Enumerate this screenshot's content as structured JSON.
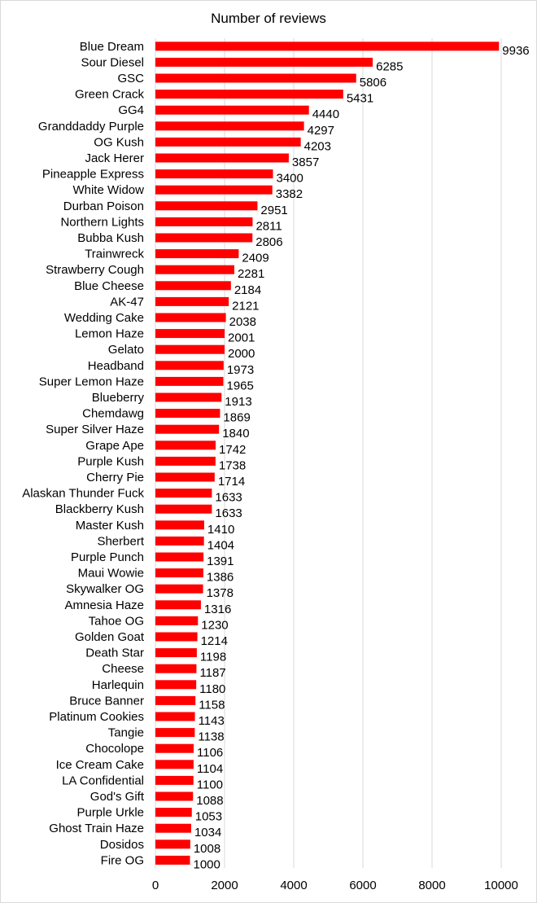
{
  "chart_data": {
    "type": "bar",
    "orientation": "horizontal",
    "title": "Number of reviews",
    "xlim": [
      0,
      10000
    ],
    "xticks": [
      0,
      2000,
      4000,
      6000,
      8000,
      10000
    ],
    "grid": true,
    "bar_color": "#ff0000",
    "categories": [
      "Blue Dream",
      "Sour Diesel",
      "GSC",
      "Green Crack",
      "GG4",
      "Granddaddy Purple",
      "OG Kush",
      "Jack Herer",
      "Pineapple Express",
      "White Widow",
      "Durban Poison",
      "Northern Lights",
      "Bubba Kush",
      "Trainwreck",
      "Strawberry Cough",
      "Blue Cheese",
      "AK-47",
      "Wedding Cake",
      "Lemon Haze",
      "Gelato",
      "Headband",
      "Super Lemon Haze",
      "Blueberry",
      "Chemdawg",
      "Super Silver Haze",
      "Grape Ape",
      "Purple Kush",
      "Cherry Pie",
      "Alaskan Thunder Fuck",
      "Blackberry Kush",
      "Master Kush",
      "Sherbert",
      "Purple Punch",
      "Maui Wowie",
      "Skywalker OG",
      "Amnesia Haze",
      "Tahoe OG",
      "Golden Goat",
      "Death Star",
      "Cheese",
      "Harlequin",
      "Bruce Banner",
      "Platinum Cookies",
      "Tangie",
      "Chocolope",
      "Ice Cream Cake",
      "LA Confidential",
      "God's Gift",
      "Purple Urkle",
      "Ghost Train Haze",
      "Dosidos",
      "Fire OG"
    ],
    "values": [
      9936,
      6285,
      5806,
      5431,
      4440,
      4297,
      4203,
      3857,
      3400,
      3382,
      2951,
      2811,
      2806,
      2409,
      2281,
      2184,
      2121,
      2038,
      2001,
      2000,
      1973,
      1965,
      1913,
      1869,
      1840,
      1742,
      1738,
      1714,
      1633,
      1633,
      1410,
      1404,
      1391,
      1386,
      1378,
      1316,
      1230,
      1214,
      1198,
      1187,
      1180,
      1158,
      1143,
      1138,
      1106,
      1104,
      1100,
      1088,
      1053,
      1034,
      1008,
      1000
    ]
  }
}
